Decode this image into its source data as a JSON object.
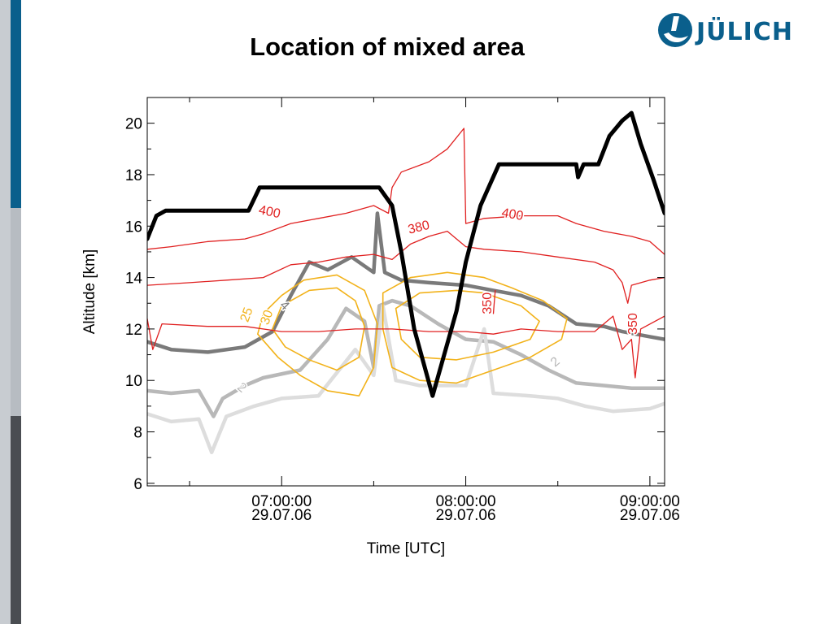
{
  "slide": {
    "title": "Location of mixed area",
    "logo_text": "JÜLICH",
    "colors": {
      "logo_blue": "#0a5f8c",
      "sidebar_blue": "#0a5f8c",
      "sidebar_gray": "#b7bcc2",
      "sidebar_dark": "#4a4d52",
      "sidebar_light": "#dcdfe3"
    }
  },
  "chart_data": {
    "type": "line",
    "title": "",
    "xlabel": "Time [UTC]",
    "ylabel": "Altitude [km]",
    "x_unit": "hours UTC, 29.07.06",
    "xlim": [
      6.27,
      9.08
    ],
    "ylim": [
      5.9,
      21.0
    ],
    "xticks": [
      {
        "x": 7.0,
        "line1": "07:00:00",
        "line2": "29.07.06"
      },
      {
        "x": 8.0,
        "line1": "08:00:00",
        "line2": "29.07.06"
      },
      {
        "x": 9.0,
        "line1": "09:00:00",
        "line2": "29.07.06"
      }
    ],
    "yticks": [
      6,
      8,
      10,
      12,
      14,
      16,
      18,
      20
    ],
    "x_minor": [
      6.5,
      7.5,
      8.5
    ],
    "grid": false,
    "series": [
      {
        "role": "flight-altitude",
        "color": "#000000",
        "width": 5,
        "points": [
          [
            6.27,
            15.5
          ],
          [
            6.32,
            16.4
          ],
          [
            6.37,
            16.6
          ],
          [
            6.6,
            16.6
          ],
          [
            6.82,
            16.6
          ],
          [
            6.88,
            17.5
          ],
          [
            6.95,
            17.5
          ],
          [
            7.2,
            17.5
          ],
          [
            7.53,
            17.5
          ],
          [
            7.6,
            16.8
          ],
          [
            7.65,
            15.0
          ],
          [
            7.72,
            12.0
          ],
          [
            7.82,
            9.4
          ],
          [
            7.95,
            12.7
          ],
          [
            8.0,
            14.6
          ],
          [
            8.08,
            16.8
          ],
          [
            8.18,
            18.4
          ],
          [
            8.3,
            18.4
          ],
          [
            8.48,
            18.4
          ],
          [
            8.6,
            18.4
          ],
          [
            8.61,
            17.9
          ],
          [
            8.64,
            18.4
          ],
          [
            8.72,
            18.4
          ],
          [
            8.78,
            19.5
          ],
          [
            8.85,
            20.1
          ],
          [
            8.9,
            20.4
          ],
          [
            8.95,
            19.2
          ],
          [
            9.02,
            17.8
          ],
          [
            9.08,
            16.5
          ]
        ]
      },
      {
        "role": "isentrope",
        "label": "400",
        "color": "#e02020",
        "width": 1.3,
        "points": [
          [
            6.27,
            15.1
          ],
          [
            6.4,
            15.2
          ],
          [
            6.6,
            15.4
          ],
          [
            6.8,
            15.5
          ],
          [
            6.9,
            15.7
          ],
          [
            7.05,
            16.1
          ],
          [
            7.2,
            16.3
          ],
          [
            7.35,
            16.5
          ],
          [
            7.5,
            16.8
          ],
          [
            7.58,
            16.5
          ],
          [
            7.6,
            17.5
          ],
          [
            7.65,
            18.1
          ],
          [
            7.8,
            18.5
          ],
          [
            7.9,
            19.0
          ],
          [
            7.99,
            19.8
          ],
          [
            8.0,
            16.1
          ],
          [
            8.1,
            16.3
          ],
          [
            8.3,
            16.4
          ],
          [
            8.5,
            16.4
          ],
          [
            8.6,
            16.1
          ],
          [
            8.75,
            15.8
          ],
          [
            8.9,
            15.6
          ],
          [
            9.0,
            15.4
          ],
          [
            9.08,
            14.9
          ]
        ]
      },
      {
        "role": "isentrope",
        "label": "380",
        "color": "#e02020",
        "width": 1.3,
        "points": [
          [
            6.27,
            13.7
          ],
          [
            6.5,
            13.8
          ],
          [
            6.7,
            13.9
          ],
          [
            6.9,
            14.0
          ],
          [
            7.05,
            14.5
          ],
          [
            7.2,
            14.6
          ],
          [
            7.35,
            14.8
          ],
          [
            7.5,
            14.9
          ],
          [
            7.6,
            14.7
          ],
          [
            7.7,
            15.3
          ],
          [
            7.8,
            15.6
          ],
          [
            7.9,
            15.8
          ],
          [
            8.0,
            15.2
          ],
          [
            8.1,
            15.1
          ],
          [
            8.3,
            15.0
          ],
          [
            8.5,
            14.8
          ],
          [
            8.7,
            14.6
          ],
          [
            8.8,
            14.3
          ],
          [
            8.85,
            13.8
          ],
          [
            8.88,
            13.0
          ],
          [
            8.9,
            13.7
          ],
          [
            9.0,
            13.9
          ],
          [
            9.08,
            14.0
          ]
        ]
      },
      {
        "role": "isentrope",
        "label": "350",
        "color": "#e02020",
        "width": 1.3,
        "points": [
          [
            6.27,
            12.4
          ],
          [
            6.3,
            11.2
          ],
          [
            6.35,
            12.2
          ],
          [
            6.6,
            12.1
          ],
          [
            6.8,
            12.1
          ],
          [
            7.0,
            11.9
          ],
          [
            7.2,
            11.9
          ],
          [
            7.4,
            12.0
          ],
          [
            7.6,
            12.0
          ],
          [
            7.8,
            11.9
          ],
          [
            8.0,
            11.9
          ],
          [
            8.15,
            11.8
          ],
          [
            8.3,
            12.0
          ],
          [
            8.5,
            11.9
          ],
          [
            8.7,
            11.9
          ],
          [
            8.8,
            12.5
          ],
          [
            8.85,
            11.2
          ],
          [
            8.9,
            11.6
          ],
          [
            8.92,
            10.1
          ],
          [
            8.95,
            12.0
          ],
          [
            9.08,
            12.5
          ]
        ]
      },
      {
        "role": "isentrope-fragment",
        "label": "350",
        "color": "#e02020",
        "width": 1.3,
        "points": [
          [
            8.15,
            12.6
          ],
          [
            8.16,
            13.5
          ]
        ]
      },
      {
        "role": "mixing-contour",
        "label": "4",
        "color": "#7a7a7a",
        "width": 4.5,
        "points": [
          [
            6.27,
            11.5
          ],
          [
            6.4,
            11.2
          ],
          [
            6.6,
            11.1
          ],
          [
            6.8,
            11.3
          ],
          [
            6.95,
            11.9
          ],
          [
            7.05,
            13.3
          ],
          [
            7.15,
            14.6
          ],
          [
            7.25,
            14.3
          ],
          [
            7.38,
            14.8
          ],
          [
            7.5,
            14.2
          ],
          [
            7.52,
            16.5
          ],
          [
            7.56,
            14.2
          ],
          [
            7.65,
            13.9
          ],
          [
            7.8,
            13.8
          ],
          [
            8.0,
            13.7
          ],
          [
            8.15,
            13.5
          ],
          [
            8.3,
            13.3
          ],
          [
            8.45,
            12.9
          ],
          [
            8.6,
            12.2
          ],
          [
            8.75,
            12.1
          ],
          [
            8.85,
            11.9
          ],
          [
            9.0,
            11.7
          ],
          [
            9.08,
            11.6
          ]
        ]
      },
      {
        "role": "mixing-contour",
        "label": "2",
        "color": "#b8b8b8",
        "width": 4.5,
        "points": [
          [
            6.27,
            9.6
          ],
          [
            6.4,
            9.5
          ],
          [
            6.55,
            9.6
          ],
          [
            6.63,
            8.6
          ],
          [
            6.68,
            9.3
          ],
          [
            6.8,
            9.8
          ],
          [
            6.9,
            10.1
          ],
          [
            7.1,
            10.4
          ],
          [
            7.25,
            11.6
          ],
          [
            7.35,
            12.8
          ],
          [
            7.45,
            12.3
          ],
          [
            7.5,
            10.5
          ],
          [
            7.53,
            12.9
          ],
          [
            7.6,
            13.1
          ],
          [
            7.7,
            12.9
          ],
          [
            7.85,
            12.2
          ],
          [
            8.0,
            11.6
          ],
          [
            8.15,
            11.5
          ],
          [
            8.3,
            11.0
          ],
          [
            8.45,
            10.4
          ],
          [
            8.6,
            9.9
          ],
          [
            8.75,
            9.8
          ],
          [
            8.9,
            9.7
          ],
          [
            9.08,
            9.7
          ]
        ]
      },
      {
        "role": "mixing-contour",
        "label": "1",
        "color": "#dddddd",
        "width": 4.5,
        "points": [
          [
            6.27,
            8.7
          ],
          [
            6.4,
            8.4
          ],
          [
            6.55,
            8.5
          ],
          [
            6.62,
            7.2
          ],
          [
            6.7,
            8.6
          ],
          [
            6.85,
            9.0
          ],
          [
            7.0,
            9.3
          ],
          [
            7.2,
            9.4
          ],
          [
            7.4,
            11.2
          ],
          [
            7.5,
            10.2
          ],
          [
            7.55,
            12.9
          ],
          [
            7.62,
            10.0
          ],
          [
            7.75,
            9.8
          ],
          [
            8.0,
            9.8
          ],
          [
            8.1,
            12.0
          ],
          [
            8.15,
            9.5
          ],
          [
            8.35,
            9.4
          ],
          [
            8.5,
            9.3
          ],
          [
            8.65,
            9.0
          ],
          [
            8.8,
            8.8
          ],
          [
            9.0,
            8.9
          ],
          [
            9.08,
            9.1
          ]
        ]
      },
      {
        "role": "ozone-contour",
        "label": "25",
        "color": "#f2b21a",
        "width": 1.6,
        "closed": true,
        "points": [
          [
            6.87,
            11.8
          ],
          [
            6.9,
            12.6
          ],
          [
            7.0,
            13.3
          ],
          [
            7.12,
            13.9
          ],
          [
            7.3,
            14.1
          ],
          [
            7.45,
            13.5
          ],
          [
            7.52,
            12.2
          ],
          [
            7.5,
            10.5
          ],
          [
            7.42,
            9.4
          ],
          [
            7.25,
            9.6
          ],
          [
            7.1,
            10.2
          ],
          [
            6.98,
            10.9
          ]
        ]
      },
      {
        "role": "ozone-contour",
        "label": "30",
        "color": "#f2b21a",
        "width": 1.6,
        "closed": true,
        "points": [
          [
            6.95,
            12.0
          ],
          [
            7.0,
            12.9
          ],
          [
            7.15,
            13.5
          ],
          [
            7.3,
            13.6
          ],
          [
            7.4,
            13.1
          ],
          [
            7.45,
            12.1
          ],
          [
            7.42,
            10.9
          ],
          [
            7.3,
            10.4
          ],
          [
            7.15,
            10.8
          ],
          [
            7.02,
            11.3
          ]
        ]
      },
      {
        "role": "ozone-contour",
        "label": "25",
        "color": "#f2b21a",
        "width": 1.6,
        "closed": true,
        "points": [
          [
            7.55,
            13.4
          ],
          [
            7.7,
            14.0
          ],
          [
            7.9,
            14.2
          ],
          [
            8.1,
            14.0
          ],
          [
            8.25,
            13.6
          ],
          [
            8.42,
            13.1
          ],
          [
            8.55,
            12.4
          ],
          [
            8.52,
            11.6
          ],
          [
            8.35,
            10.9
          ],
          [
            8.15,
            10.4
          ],
          [
            7.95,
            9.9
          ],
          [
            7.75,
            10.0
          ],
          [
            7.6,
            10.5
          ],
          [
            7.55,
            12.0
          ]
        ]
      },
      {
        "role": "ozone-contour",
        "label": "30",
        "color": "#f2b21a",
        "width": 1.6,
        "closed": true,
        "points": [
          [
            7.62,
            12.8
          ],
          [
            7.75,
            13.4
          ],
          [
            7.95,
            13.5
          ],
          [
            8.1,
            13.4
          ],
          [
            8.3,
            12.9
          ],
          [
            8.4,
            12.3
          ],
          [
            8.35,
            11.6
          ],
          [
            8.15,
            11.1
          ],
          [
            7.95,
            10.8
          ],
          [
            7.75,
            10.9
          ],
          [
            7.65,
            11.6
          ]
        ]
      }
    ],
    "annotations": [
      {
        "text": "400",
        "x": 6.93,
        "y": 16.4,
        "color": "#e02020",
        "rotate": 12
      },
      {
        "text": "380",
        "x": 7.75,
        "y": 15.8,
        "color": "#e02020",
        "rotate": -14
      },
      {
        "text": "400",
        "x": 8.25,
        "y": 16.3,
        "color": "#e02020",
        "rotate": 10
      },
      {
        "text": "350",
        "x": 8.14,
        "y": 13.0,
        "color": "#e02020",
        "rotate": -90
      },
      {
        "text": "350",
        "x": 8.93,
        "y": 12.2,
        "color": "#e02020",
        "rotate": -90
      },
      {
        "text": "25",
        "x": 6.83,
        "y": 12.5,
        "color": "#f2b21a",
        "rotate": -70
      },
      {
        "text": "30",
        "x": 6.94,
        "y": 12.4,
        "color": "#f2b21a",
        "rotate": -70
      },
      {
        "text": "4",
        "x": 7.0,
        "y": 12.8,
        "color": "#7a7a7a",
        "rotate": 45
      },
      {
        "text": "2",
        "x": 6.77,
        "y": 9.6,
        "color": "#b8b8b8",
        "rotate": 40
      },
      {
        "text": "2",
        "x": 8.5,
        "y": 10.6,
        "color": "#b8b8b8",
        "rotate": -40
      }
    ]
  }
}
